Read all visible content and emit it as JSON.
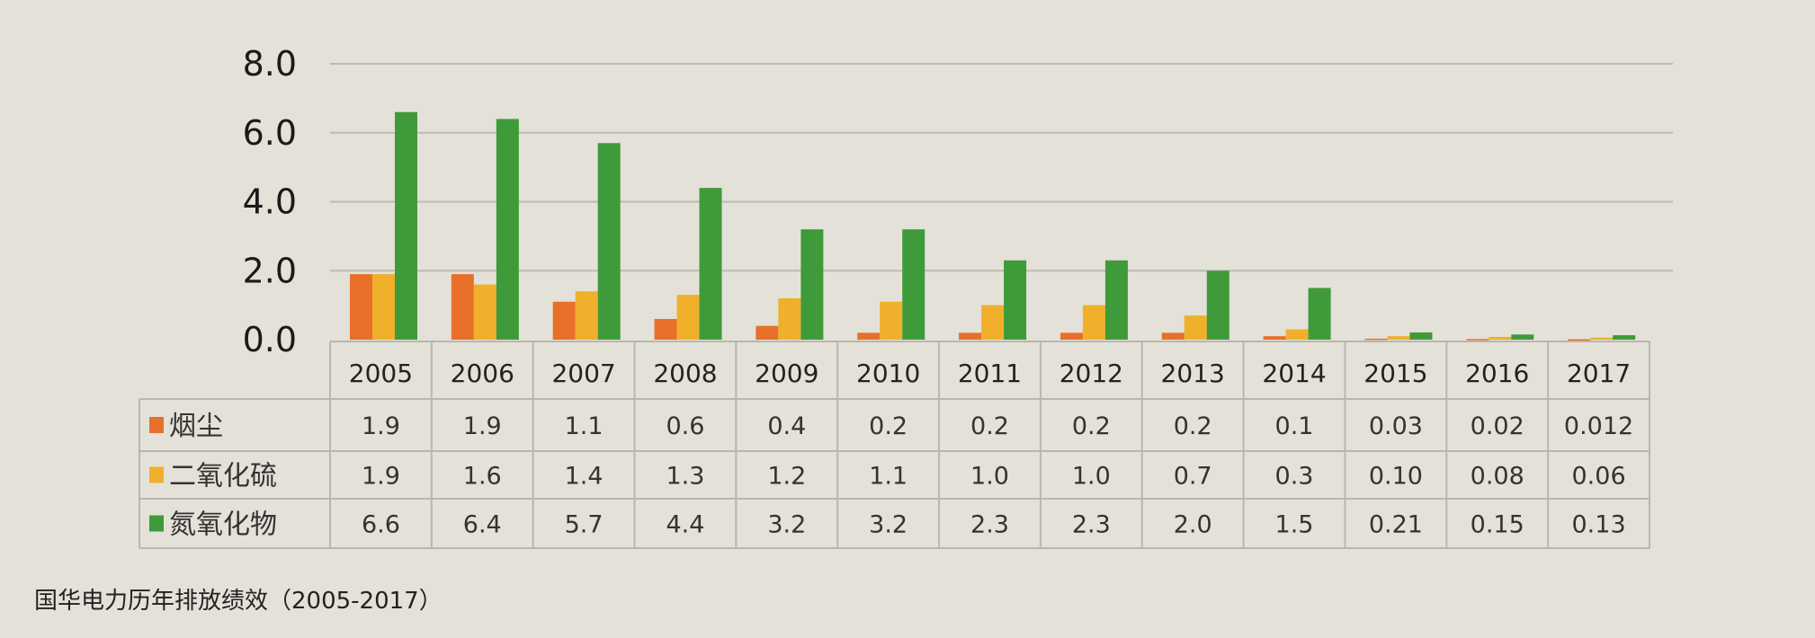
{
  "chart_data": {
    "type": "bar",
    "title": "国华电力历年排放绩效（2005-2017）",
    "categories": [
      "2005",
      "2006",
      "2007",
      "2008",
      "2009",
      "2010",
      "2011",
      "2012",
      "2013",
      "2014",
      "2015",
      "2016",
      "2017"
    ],
    "series": [
      {
        "name": "烟尘",
        "color": "#e8702a",
        "values": [
          1.9,
          1.9,
          1.1,
          0.6,
          0.4,
          0.2,
          0.2,
          0.2,
          0.2,
          0.1,
          0.03,
          0.02,
          0.012
        ],
        "labels": [
          "1.9",
          "1.9",
          "1.1",
          "0.6",
          "0.4",
          "0.2",
          "0.2",
          "0.2",
          "0.2",
          "0.1",
          "0.03",
          "0.02",
          "0.012"
        ]
      },
      {
        "name": "二氧化硫",
        "color": "#f0b02c",
        "values": [
          1.9,
          1.6,
          1.4,
          1.3,
          1.2,
          1.1,
          1.0,
          1.0,
          0.7,
          0.3,
          0.1,
          0.08,
          0.06
        ],
        "labels": [
          "1.9",
          "1.6",
          "1.4",
          "1.3",
          "1.2",
          "1.1",
          "1.0",
          "1.0",
          "0.7",
          "0.3",
          "0.10",
          "0.08",
          "0.06"
        ]
      },
      {
        "name": "氮氧化物",
        "color": "#3f9a3a",
        "values": [
          6.6,
          6.4,
          5.7,
          4.4,
          3.2,
          3.2,
          2.3,
          2.3,
          2.0,
          1.5,
          0.21,
          0.15,
          0.13
        ],
        "labels": [
          "6.6",
          "6.4",
          "5.7",
          "4.4",
          "3.2",
          "3.2",
          "2.3",
          "2.3",
          "2.0",
          "1.5",
          "0.21",
          "0.15",
          "0.13"
        ]
      }
    ],
    "yticks": [
      "0.0",
      "2.0",
      "4.0",
      "6.0",
      "8.0"
    ],
    "ylim": [
      0,
      8
    ],
    "grid": true,
    "data_table": true
  }
}
